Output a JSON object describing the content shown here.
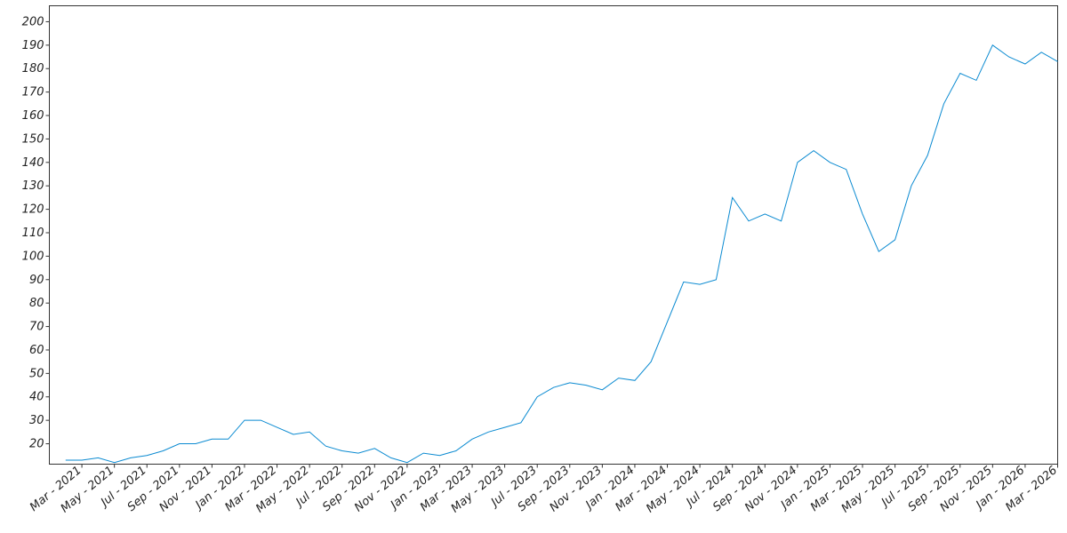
{
  "chart_data": {
    "type": "line",
    "color": "#0a8ad1",
    "x": [
      "2021-02",
      "2021-03",
      "2021-04",
      "2021-05",
      "2021-06",
      "2021-07",
      "2021-08",
      "2021-09",
      "2021-10",
      "2021-11",
      "2021-12",
      "2022-01",
      "2022-02",
      "2022-03",
      "2022-04",
      "2022-05",
      "2022-06",
      "2022-07",
      "2022-08",
      "2022-09",
      "2022-10",
      "2022-11",
      "2022-12",
      "2023-01",
      "2023-02",
      "2023-03",
      "2023-04",
      "2023-05",
      "2023-06",
      "2023-07",
      "2023-08",
      "2023-09",
      "2023-10",
      "2023-11",
      "2023-12",
      "2024-01",
      "2024-02",
      "2024-03",
      "2024-04",
      "2024-05",
      "2024-06",
      "2024-07",
      "2024-08",
      "2024-09",
      "2024-10",
      "2024-11",
      "2024-12",
      "2025-01",
      "2025-02",
      "2025-03",
      "2025-04",
      "2025-05",
      "2025-06",
      "2025-07",
      "2025-08",
      "2025-09",
      "2025-10",
      "2025-11",
      "2025-12",
      "2026-01",
      "2026-02",
      "2026-03"
    ],
    "values": [
      13,
      13,
      14,
      12,
      14,
      15,
      17,
      20,
      20,
      22,
      22,
      30,
      30,
      27,
      24,
      25,
      19,
      17,
      16,
      18,
      14,
      12,
      16,
      15,
      17,
      22,
      25,
      27,
      29,
      40,
      44,
      46,
      45,
      43,
      48,
      47,
      55,
      72,
      89,
      88,
      90,
      125,
      115,
      118,
      115,
      140,
      145,
      140,
      137,
      118,
      102,
      107,
      130,
      143,
      165,
      178,
      175,
      190,
      185,
      182,
      187,
      183
    ],
    "xlim": [
      "2021-01",
      "2026-03"
    ],
    "xticks": [
      {
        "value": "2021-03",
        "label": "Mar - 2021"
      },
      {
        "value": "2021-05",
        "label": "May - 2021"
      },
      {
        "value": "2021-07",
        "label": "Jul - 2021"
      },
      {
        "value": "2021-09",
        "label": "Sep - 2021"
      },
      {
        "value": "2021-11",
        "label": "Nov - 2021"
      },
      {
        "value": "2022-01",
        "label": "Jan - 2022"
      },
      {
        "value": "2022-03",
        "label": "Mar - 2022"
      },
      {
        "value": "2022-05",
        "label": "May - 2022"
      },
      {
        "value": "2022-07",
        "label": "Jul - 2022"
      },
      {
        "value": "2022-09",
        "label": "Sep - 2022"
      },
      {
        "value": "2022-11",
        "label": "Nov - 2022"
      },
      {
        "value": "2023-01",
        "label": "Jan - 2023"
      },
      {
        "value": "2023-03",
        "label": "Mar - 2023"
      },
      {
        "value": "2023-05",
        "label": "May - 2023"
      },
      {
        "value": "2023-07",
        "label": "Jul - 2023"
      },
      {
        "value": "2023-09",
        "label": "Sep - 2023"
      },
      {
        "value": "2023-11",
        "label": "Nov - 2023"
      },
      {
        "value": "2024-01",
        "label": "Jan - 2024"
      },
      {
        "value": "2024-03",
        "label": "Mar - 2024"
      },
      {
        "value": "2024-05",
        "label": "May - 2024"
      },
      {
        "value": "2024-07",
        "label": "Jul - 2024"
      },
      {
        "value": "2024-09",
        "label": "Sep - 2024"
      },
      {
        "value": "2024-11",
        "label": "Nov - 2024"
      },
      {
        "value": "2025-01",
        "label": "Jan - 2025"
      },
      {
        "value": "2025-03",
        "label": "Mar - 2025"
      },
      {
        "value": "2025-05",
        "label": "May - 2025"
      },
      {
        "value": "2025-07",
        "label": "Jul - 2025"
      },
      {
        "value": "2025-09",
        "label": "Sep - 2025"
      },
      {
        "value": "2025-11",
        "label": "Nov - 2025"
      },
      {
        "value": "2026-01",
        "label": "Jan - 2026"
      },
      {
        "value": "2026-03",
        "label": "Mar - 2026"
      }
    ],
    "ylim": [
      11.3,
      206.8
    ],
    "yticks": [
      20,
      30,
      40,
      50,
      60,
      70,
      80,
      90,
      100,
      110,
      120,
      130,
      140,
      150,
      160,
      170,
      180,
      190,
      200
    ]
  }
}
